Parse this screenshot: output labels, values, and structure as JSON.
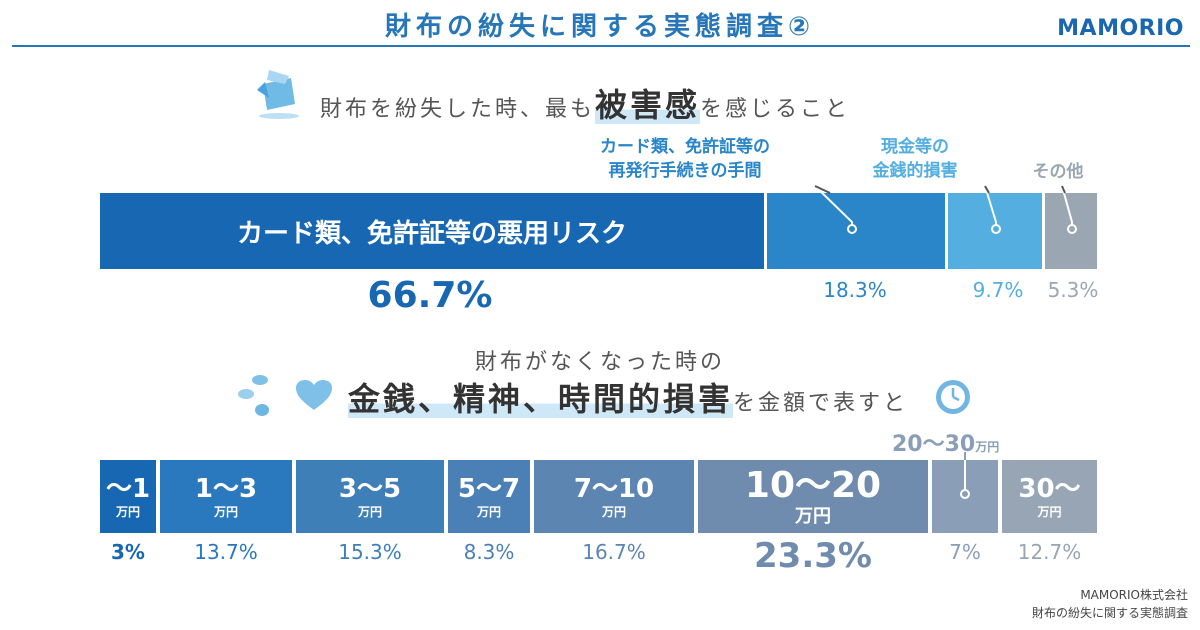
{
  "header": {
    "title": "財布の紛失に関する実態調査②",
    "logo": "MAMORIO"
  },
  "section1": {
    "heading_pre": "財布を紛失した時、最も",
    "heading_em": "被害感",
    "heading_post": "を感じること"
  },
  "section2": {
    "heading_line1": "財布がなくなった時の",
    "heading_em": "金銭、精神、時間的損害",
    "heading_post": "を金額で表すと"
  },
  "colors": {
    "dark_blue": "#1767b3",
    "mid_blue": "#2a86c8",
    "light_blue": "#54aee0",
    "grey": "#9aa6b2",
    "blue_2": "#3f7fb8",
    "steel_1": "#5c85b1",
    "steel_2": "#6f8bad",
    "steel_3": "#8a9fb7",
    "steel_4": "#97a5b5"
  },
  "footer": {
    "company": "MAMORIO株式会社",
    "source": "財布の紛失に関する実態調査"
  },
  "chart_data": [
    {
      "type": "bar",
      "orientation": "horizontal-stacked-100",
      "title": "財布を紛失した時、最も被害感を感じること",
      "series": [
        {
          "name": "カード類、免許証等の悪用リスク",
          "value": 66.7,
          "label": "66.7%",
          "segment_label": "カード類、免許証等の悪用リスク"
        },
        {
          "name": "カード類、免許証等の再発行手続きの手間",
          "value": 18.3,
          "label": "18.3%",
          "caption": [
            "カード類、免許証等の",
            "再発行手続きの手間"
          ]
        },
        {
          "name": "現金等の金銭的損害",
          "value": 9.7,
          "label": "9.7%",
          "caption": [
            "現金等の",
            "金銭的損害"
          ]
        },
        {
          "name": "その他",
          "value": 5.3,
          "label": "5.3%",
          "caption": [
            "その他"
          ]
        }
      ]
    },
    {
      "type": "bar",
      "orientation": "horizontal-stacked-100",
      "title": "財布がなくなった時の金銭、精神、時間的損害を金額で表すと",
      "categories": [
        "〜1",
        "1〜3",
        "3〜5",
        "5〜7",
        "7〜10",
        "10〜20",
        "20〜30",
        "30〜"
      ],
      "unit": "万円",
      "values": [
        3,
        13.7,
        15.3,
        8.3,
        16.7,
        23.3,
        7,
        12.7
      ],
      "labels": [
        "3%",
        "13.7%",
        "15.3%",
        "8.3%",
        "16.7%",
        "23.3%",
        "7%",
        "12.7%"
      ]
    }
  ]
}
